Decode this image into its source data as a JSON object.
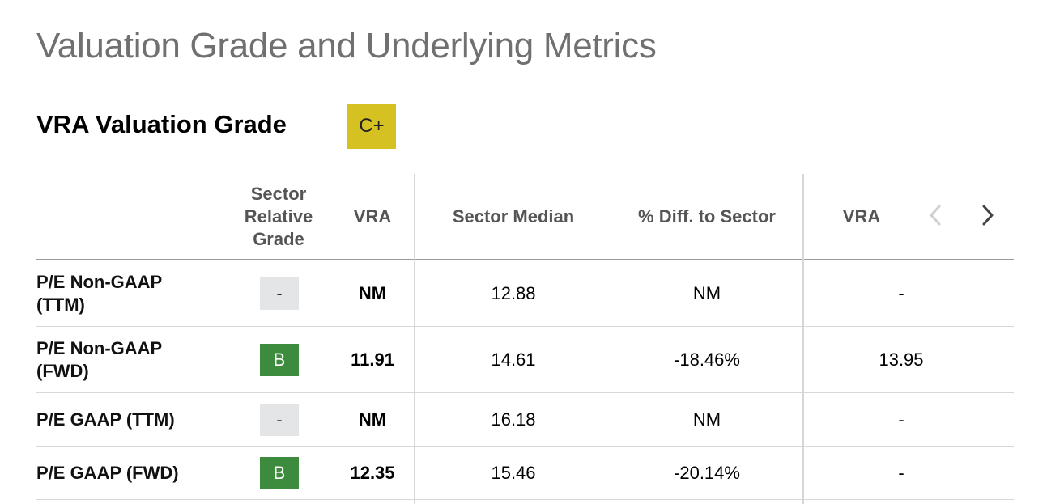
{
  "page_title": "Valuation Grade and Underlying Metrics",
  "grade_section": {
    "title": "VRA Valuation Grade",
    "overall_grade": "C+"
  },
  "table": {
    "headers": {
      "grade": [
        "Sector",
        "Relative",
        "Grade"
      ],
      "ticker": "VRA",
      "sector_median": "Sector Median",
      "diff": "% Diff. to Sector",
      "prev_ticker": "VRA"
    },
    "rows": [
      {
        "metric": [
          "P/E Non-GAAP",
          "(TTM)"
        ],
        "grade": "-",
        "vra": "NM",
        "sector_median": "12.88",
        "diff": "NM",
        "prev": "-"
      },
      {
        "metric": [
          "P/E Non-GAAP",
          "(FWD)"
        ],
        "grade": "B",
        "vra": "11.91",
        "sector_median": "14.61",
        "diff": "-18.46%",
        "prev": "13.95"
      },
      {
        "metric": [
          "P/E GAAP (TTM)"
        ],
        "grade": "-",
        "vra": "NM",
        "sector_median": "16.18",
        "diff": "NM",
        "prev": "-"
      },
      {
        "metric": [
          "P/E GAAP (FWD)"
        ],
        "grade": "B",
        "vra": "12.35",
        "sector_median": "15.46",
        "diff": "-20.14%",
        "prev": "-"
      }
    ]
  },
  "nav": {
    "prev_icon": "chevron-left-icon",
    "next_icon": "chevron-right-icon"
  },
  "colors": {
    "overall_grade_bg": "#d6c122",
    "grade_b_bg": "#3d8b3d",
    "grade_none_bg": "#e4e5e7",
    "title_gray": "#707070"
  }
}
